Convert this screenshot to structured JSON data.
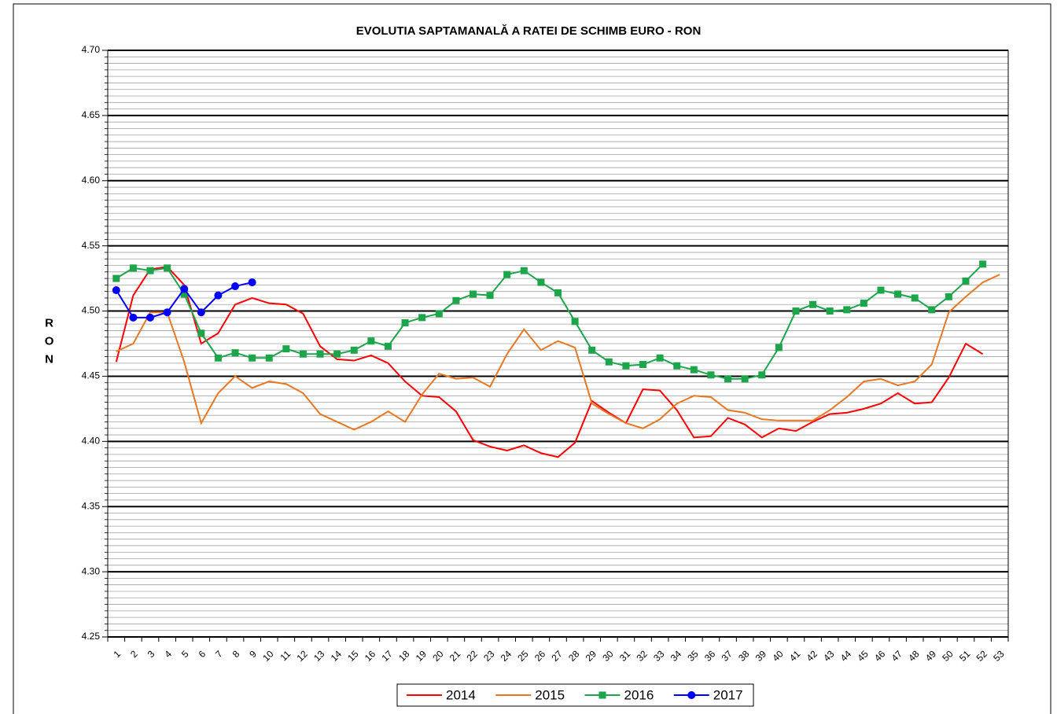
{
  "chart_data": {
    "type": "line",
    "title": "EVOLUTIA SAPTAMANALĂ A RATEI DE SCHIMB EURO - RON",
    "y_label": "RON",
    "categories": [
      "1",
      "2",
      "3",
      "4",
      "5",
      "6",
      "7",
      "8",
      "9",
      "10",
      "11",
      "12",
      "13",
      "14",
      "15",
      "16",
      "17",
      "18",
      "19",
      "20",
      "21",
      "22",
      "23",
      "24",
      "25",
      "26",
      "27",
      "28",
      "29",
      "30",
      "31",
      "32",
      "33",
      "34",
      "35",
      "36",
      "37",
      "38",
      "39",
      "40",
      "41",
      "42",
      "43",
      "44",
      "45",
      "46",
      "47",
      "48",
      "49",
      "50",
      "51",
      "52",
      "53"
    ],
    "ylim": [
      4.25,
      4.7
    ],
    "yticks": [
      4.25,
      {
        "value": 4.3,
        "label": "4.30"
      },
      4.35,
      {
        "value": 4.4,
        "label": "4.40"
      },
      4.45,
      {
        "value": 4.5,
        "label": "4.50"
      },
      4.55,
      {
        "value": 4.6,
        "label": "4.60"
      },
      4.65,
      {
        "value": 4.7,
        "label": "4.70"
      }
    ],
    "grid": true,
    "legend": "bottom",
    "series": [
      {
        "name": "2014",
        "color": "#ff0000",
        "marker": "none",
        "values": [
          4.461,
          4.512,
          4.532,
          4.534,
          4.52,
          4.475,
          4.483,
          4.505,
          4.51,
          4.506,
          4.505,
          4.498,
          4.473,
          4.463,
          4.462,
          4.466,
          4.46,
          4.446,
          4.435,
          4.434,
          4.423,
          4.401,
          4.396,
          4.393,
          4.397,
          4.391,
          4.388,
          4.399,
          4.431,
          4.422,
          4.414,
          4.44,
          4.439,
          4.424,
          4.403,
          4.404,
          4.418,
          4.413,
          4.403,
          4.41,
          4.408,
          4.415,
          4.421,
          4.422,
          4.425,
          4.429,
          4.437,
          4.429,
          4.43,
          4.449,
          4.475,
          4.467,
          null
        ]
      },
      {
        "name": "2015",
        "color": "#e87722",
        "marker": "none",
        "values": [
          4.469,
          4.475,
          4.499,
          4.499,
          4.461,
          4.414,
          4.437,
          4.45,
          4.441,
          4.446,
          4.444,
          4.437,
          4.421,
          4.415,
          4.409,
          4.415,
          4.423,
          4.415,
          4.436,
          4.452,
          4.448,
          4.449,
          4.442,
          4.467,
          4.486,
          4.47,
          4.477,
          4.472,
          4.429,
          4.421,
          4.414,
          4.41,
          4.417,
          4.429,
          4.435,
          4.434,
          4.424,
          4.422,
          4.417,
          4.416,
          4.416,
          4.416,
          4.424,
          4.434,
          4.446,
          4.448,
          4.443,
          4.446,
          4.459,
          4.499,
          4.511,
          4.522,
          4.528
        ]
      },
      {
        "name": "2016",
        "color": "#1ca54b",
        "marker": "square",
        "values": [
          4.525,
          4.533,
          4.531,
          4.533,
          4.513,
          4.483,
          4.464,
          4.468,
          4.464,
          4.464,
          4.471,
          4.467,
          4.467,
          4.467,
          4.47,
          4.477,
          4.473,
          4.491,
          4.495,
          4.498,
          4.508,
          4.513,
          4.512,
          4.528,
          4.531,
          4.522,
          4.514,
          4.492,
          4.47,
          4.461,
          4.458,
          4.459,
          4.464,
          4.458,
          4.455,
          4.451,
          4.448,
          4.448,
          4.451,
          4.472,
          4.5,
          4.505,
          4.5,
          4.501,
          4.506,
          4.516,
          4.513,
          4.51,
          4.501,
          4.511,
          4.523,
          4.536,
          null
        ]
      },
      {
        "name": "2017",
        "color": "#0000ff",
        "marker": "circle",
        "values": [
          4.516,
          4.495,
          4.495,
          4.499,
          4.517,
          4.499,
          4.512,
          4.519,
          4.522,
          null,
          null,
          null,
          null,
          null,
          null,
          null,
          null,
          null,
          null,
          null,
          null,
          null,
          null,
          null,
          null,
          null,
          null,
          null,
          null,
          null,
          null,
          null,
          null,
          null,
          null,
          null,
          null,
          null,
          null,
          null,
          null,
          null,
          null,
          null,
          null,
          null,
          null,
          null,
          null,
          null,
          null,
          null,
          null
        ]
      }
    ]
  }
}
